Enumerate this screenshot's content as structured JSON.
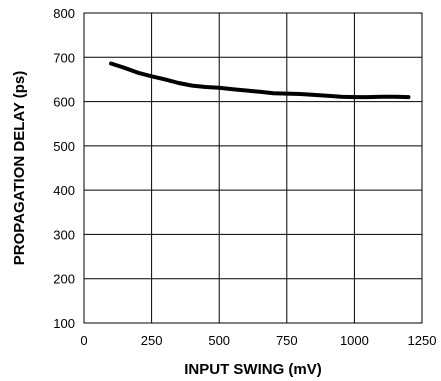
{
  "chart_data": {
    "type": "line",
    "title": "",
    "xlabel": "INPUT SWING (mV)",
    "ylabel": "PROPAGATION DELAY (ps)",
    "xlim": [
      0,
      1250
    ],
    "ylim": [
      100,
      800
    ],
    "xticks": [
      0,
      250,
      500,
      750,
      1000,
      1250
    ],
    "yticks": [
      100,
      200,
      300,
      400,
      500,
      600,
      700,
      800
    ],
    "xtick_labels": [
      "0",
      "250",
      "500",
      "750",
      "1000",
      "1250"
    ],
    "ytick_labels": [
      "100",
      "200",
      "300",
      "400",
      "500",
      "600",
      "700",
      "800"
    ],
    "grid": true,
    "legend": "none",
    "series": [
      {
        "color": "#000000",
        "x": [
          100,
          150,
          200,
          250,
          300,
          350,
          400,
          450,
          500,
          550,
          600,
          650,
          700,
          750,
          800,
          850,
          900,
          950,
          1000,
          1050,
          1100,
          1150,
          1200
        ],
        "y": [
          686,
          676,
          665,
          657,
          650,
          642,
          636,
          633,
          631,
          628,
          625,
          622,
          619,
          618,
          617,
          615,
          613,
          611,
          610,
          610,
          611,
          611,
          610
        ]
      }
    ]
  }
}
